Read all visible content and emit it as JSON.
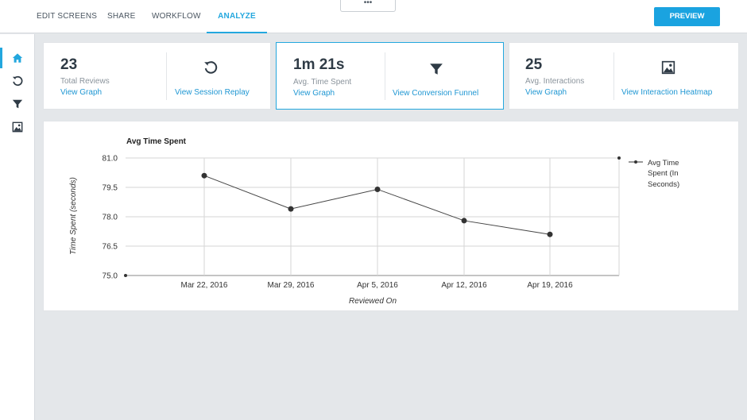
{
  "nav": {
    "tabs": [
      {
        "label": "EDIT SCREENS"
      },
      {
        "label": "SHARE"
      },
      {
        "label": "WORKFLOW"
      },
      {
        "label": "ANALYZE"
      }
    ],
    "more_label": "•••",
    "preview_label": "PREVIEW",
    "accent_color": "#23a7de"
  },
  "sidebar": {
    "items": [
      {
        "icon": "home-icon",
        "active": true
      },
      {
        "icon": "refresh-icon",
        "active": false
      },
      {
        "icon": "funnel-icon",
        "active": false
      },
      {
        "icon": "image-icon",
        "active": false
      }
    ]
  },
  "cards": [
    {
      "value": "23",
      "label": "Total Reviews",
      "link": "View Graph",
      "action_icon": "refresh-icon",
      "action_label": "View Session Replay"
    },
    {
      "value": "1m 21s",
      "label": "Avg. Time Spent",
      "link": "View Graph",
      "action_icon": "funnel-icon",
      "action_label": "View Conversion Funnel"
    },
    {
      "value": "25",
      "label": "Avg. Interactions",
      "link": "View Graph",
      "action_icon": "image-icon",
      "action_label": "View Interaction Heatmap"
    }
  ],
  "chart_data": {
    "type": "line",
    "title": "Avg Time Spent",
    "xlabel": "Reviewed On",
    "ylabel": "Time Spent (seconds)",
    "legend": "Avg Time Spent (In Seconds)",
    "legend_lines": [
      "Avg Time",
      "Spent (In",
      "Seconds)"
    ],
    "legend_position": "right",
    "x_tick_labels": [
      "Mar 22, 2016",
      "Mar 29, 2016",
      "Apr 5, 2016",
      "Apr 12, 2016",
      "Apr 19, 2016"
    ],
    "y_tick_labels": [
      "81.0",
      "79.5",
      "78.0",
      "76.5",
      "75.0"
    ],
    "ylim": [
      75.0,
      81.0
    ],
    "grid": true,
    "series": [
      {
        "name": "Avg Time Spent (In Seconds)",
        "points": [
          {
            "x": "Mar 22, 2016",
            "y": 80.1
          },
          {
            "x": "Mar 29, 2016",
            "y": 78.4
          },
          {
            "x": "Apr 5, 2016",
            "y": 79.4
          },
          {
            "x": "Apr 12, 2016",
            "y": 77.8
          },
          {
            "x": "Apr 19, 2016",
            "y": 77.1
          }
        ]
      }
    ]
  }
}
